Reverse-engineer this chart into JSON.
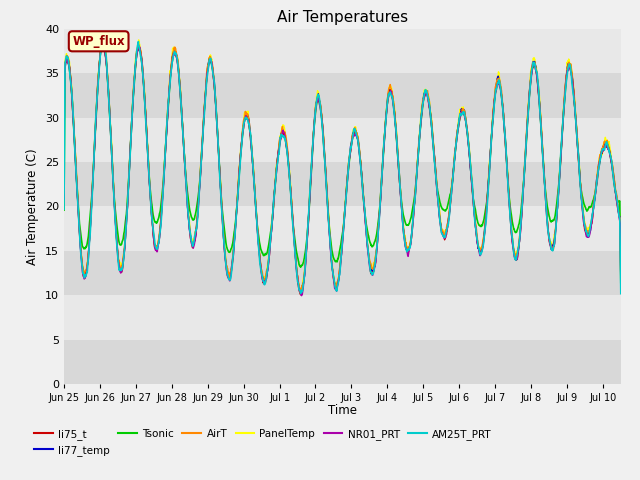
{
  "title": "Air Temperatures",
  "ylabel": "Air Temperature (C)",
  "xlabel": "Time",
  "ylim": [
    0,
    40
  ],
  "yticks": [
    0,
    5,
    10,
    15,
    20,
    25,
    30,
    35,
    40
  ],
  "bg_color": "#f0f0f0",
  "plot_bg_color": "#e8e8e8",
  "annotation_text": "WP_flux",
  "annotation_bg": "#ffffcc",
  "annotation_border": "#990000",
  "series": {
    "li75_t": {
      "color": "#cc0000",
      "lw": 1.0,
      "zorder": 5
    },
    "li77_temp": {
      "color": "#0000cc",
      "lw": 1.0,
      "zorder": 4
    },
    "Tsonic": {
      "color": "#00cc00",
      "lw": 1.2,
      "zorder": 3
    },
    "AirT": {
      "color": "#ff8800",
      "lw": 1.0,
      "zorder": 6
    },
    "PanelTemp": {
      "color": "#ffff00",
      "lw": 1.0,
      "zorder": 2
    },
    "NR01_PRT": {
      "color": "#aa00aa",
      "lw": 1.0,
      "zorder": 7
    },
    "AM25T_PRT": {
      "color": "#00cccc",
      "lw": 1.2,
      "zorder": 8
    }
  },
  "x_tick_labels": [
    "Jun 25",
    "Jun 26",
    "Jun 27",
    "Jun 28",
    "Jun 29",
    "Jun 30",
    "Jul 1",
    "Jul 2",
    "Jul 3",
    "Jul 4",
    "Jul 5",
    "Jul 6",
    "Jul 7",
    "Jul 8",
    "Jul 9",
    "Jul 10"
  ],
  "num_days": 15.5,
  "band_colors": [
    "#d8d8d8",
    "#e8e8e8"
  ]
}
